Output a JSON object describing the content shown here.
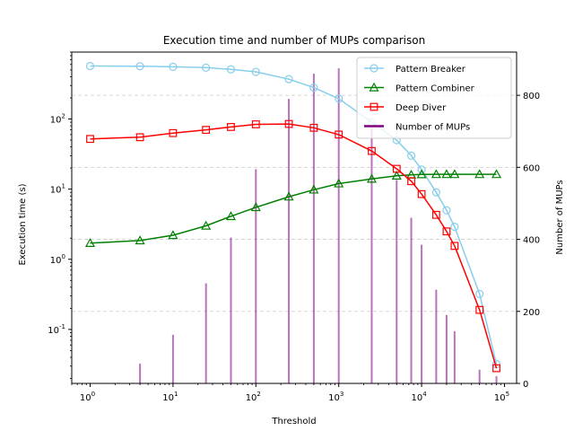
{
  "chart_data": {
    "type": "line",
    "title": "Execution time and number of MUPs comparison",
    "xlabel": "Threshold",
    "ylabel": "Execution time (s)",
    "y2label": "Number of MUPs",
    "xscale": "log",
    "yscale": "log",
    "xlim": [
      0.6,
      140000
    ],
    "ylim": [
      0.017,
      900
    ],
    "y2lim": [
      0,
      920
    ],
    "grid": "horizontal-dashed",
    "legend_position": "top-right",
    "x_tick_labels": [
      "10^0",
      "10^1",
      "10^2",
      "10^3",
      "10^4",
      "10^5"
    ],
    "y_tick_labels": [
      "10^-1",
      "10^0",
      "10^1",
      "10^2"
    ],
    "y2_tick_labels": [
      "0",
      "200",
      "400",
      "600",
      "800"
    ],
    "series": [
      {
        "name": "Pattern Breaker",
        "axis": "left",
        "color": "#87ceeb",
        "marker": "circle",
        "x": [
          1,
          4,
          10,
          25,
          50,
          100,
          250,
          500,
          1000,
          2500,
          5000,
          7500,
          10000,
          15000,
          20000,
          25000,
          50000,
          80000
        ],
        "y": [
          570,
          565,
          555,
          540,
          510,
          470,
          370,
          280,
          195,
          90,
          50,
          30,
          19,
          9,
          5,
          2.9,
          0.32,
          0.032
        ]
      },
      {
        "name": "Pattern Combiner",
        "axis": "left",
        "color": "#008000",
        "marker": "triangle",
        "x": [
          1,
          4,
          10,
          25,
          50,
          100,
          250,
          500,
          1000,
          2500,
          5000,
          7500,
          10000,
          15000,
          20000,
          25000,
          50000,
          80000
        ],
        "y": [
          1.7,
          1.85,
          2.2,
          3.0,
          4.1,
          5.5,
          7.8,
          9.8,
          12,
          14,
          15.5,
          16,
          16.2,
          16.3,
          16.3,
          16.3,
          16.3,
          16.3
        ]
      },
      {
        "name": "Deep Diver",
        "axis": "left",
        "color": "#ff0000",
        "marker": "square",
        "x": [
          1,
          4,
          10,
          25,
          50,
          100,
          250,
          500,
          1000,
          2500,
          5000,
          7500,
          10000,
          15000,
          20000,
          25000,
          50000,
          80000
        ],
        "y": [
          52,
          55,
          63,
          70,
          77,
          84,
          85,
          75,
          60,
          35,
          19.5,
          13,
          8.5,
          4.3,
          2.5,
          1.55,
          0.19,
          0.028
        ]
      },
      {
        "name": "Number of MUPs",
        "axis": "right",
        "color": "#800080",
        "type": "bar",
        "x": [
          4,
          10,
          25,
          50,
          100,
          250,
          500,
          1000,
          2500,
          5000,
          7500,
          10000,
          15000,
          20000,
          25000,
          50000,
          80000
        ],
        "y": [
          55,
          135,
          278,
          405,
          595,
          790,
          860,
          875,
          710,
          565,
          460,
          385,
          260,
          190,
          145,
          38,
          20
        ]
      }
    ]
  }
}
